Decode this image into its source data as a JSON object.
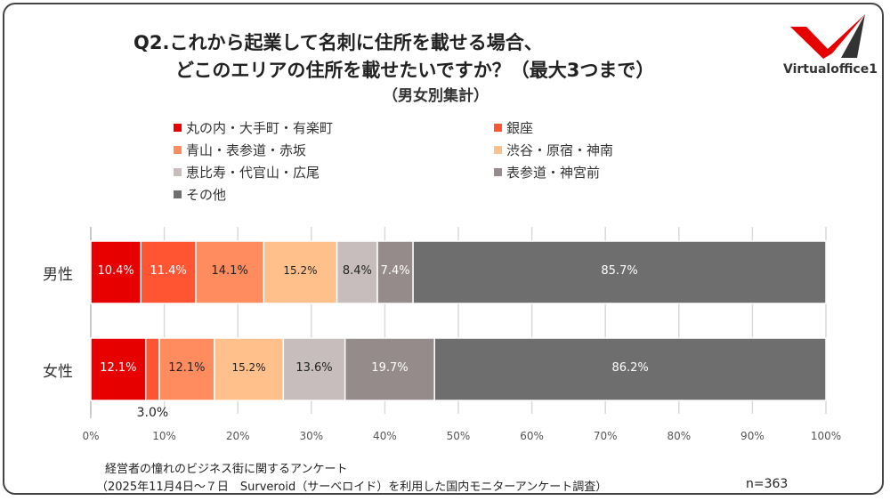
{
  "title_line1": "Q2.これから起業して名刺に住所を載せる場合、",
  "title_line2": "どこのエリアの住所を載せたいですか？（最大3つまで）",
  "subtitle": "（男女別集計）",
  "logo": {
    "text": "Virtualoffice1",
    "colors": {
      "red": "#e60000",
      "dark": "#333333"
    }
  },
  "chart_data": {
    "type": "bar",
    "orientation": "horizontal",
    "stacked": "normalized-100%",
    "categories": [
      "男性",
      "女性"
    ],
    "series": [
      {
        "name": "丸の内・大手町・有楽町",
        "color": "#e60000",
        "values": [
          10.4,
          12.1
        ],
        "labels": [
          "10.4%",
          "12.1%"
        ],
        "label_color": "#ffffff"
      },
      {
        "name": "銀座",
        "color": "#ff5533",
        "values": [
          11.4,
          3.0
        ],
        "labels": [
          "11.4%",
          "3.0%"
        ],
        "label_color": "#ffffff"
      },
      {
        "name": "青山・表参道・赤坂",
        "color": "#ff8c5f",
        "values": [
          14.1,
          12.1
        ],
        "labels": [
          "14.1%",
          "12.1%"
        ],
        "label_color": "#222222"
      },
      {
        "name": "渋谷・原宿・神南",
        "color": "#ffc08c",
        "values": [
          15.2,
          15.2
        ],
        "labels": [
          "15.2%",
          "15.2%"
        ],
        "label_color": "#222222"
      },
      {
        "name": "恵比寿・代官山・広尾",
        "color": "#c7bdbd",
        "values": [
          8.4,
          13.6
        ],
        "labels": [
          "8.4%",
          "13.6%"
        ],
        "label_color": "#222222"
      },
      {
        "name": "表参道・神宮前",
        "color": "#958b8b",
        "values": [
          7.4,
          19.7
        ],
        "labels": [
          "7.4%",
          "19.7%"
        ],
        "label_color": "#ffffff"
      },
      {
        "name": "その他",
        "color": "#6e6e6e",
        "values": [
          85.7,
          86.2
        ],
        "labels": [
          "85.7%",
          "86.2%"
        ],
        "label_color": "#ffffff"
      }
    ],
    "xlim": [
      0,
      100
    ],
    "xticks": [
      "0%",
      "10%",
      "20%",
      "30%",
      "40%",
      "50%",
      "60%",
      "70%",
      "80%",
      "90%",
      "100%"
    ],
    "grid": "vertical",
    "legend_position": "top"
  },
  "footer": {
    "survey_title": "経営者の憧れのビジネス街に関するアンケート",
    "survey_detail": "（2025年11月4日～７日　Surveroid（サーベロイド）を利用した国内モニターアンケート調査）",
    "sample_size": "n=363"
  }
}
